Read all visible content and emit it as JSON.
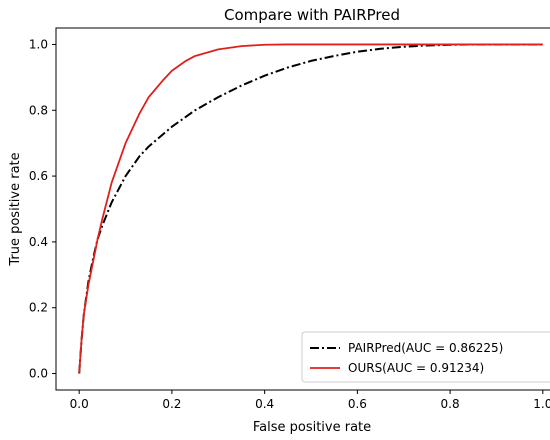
{
  "chart_data": {
    "type": "line",
    "title": "Compare with PAIRPred",
    "xlabel": "False positive rate",
    "ylabel": "True positive rate",
    "xlim": [
      -0.05,
      1.05
    ],
    "ylim": [
      -0.05,
      1.05
    ],
    "x_ticks": [
      "0.0",
      "0.2",
      "0.4",
      "0.6",
      "0.8",
      "1.0"
    ],
    "y_ticks": [
      "0.0",
      "0.2",
      "0.4",
      "0.6",
      "0.8",
      "1.0"
    ],
    "grid": false,
    "legend_position": "lower-right",
    "series": [
      {
        "name": "PAIRPred(AUC = 0.86225)",
        "color": "#000000",
        "style": "dash-dot",
        "x": [
          0.0,
          0.005,
          0.01,
          0.02,
          0.03,
          0.04,
          0.05,
          0.07,
          0.1,
          0.13,
          0.15,
          0.2,
          0.25,
          0.3,
          0.35,
          0.4,
          0.45,
          0.5,
          0.55,
          0.6,
          0.65,
          0.7,
          0.75,
          0.8,
          0.85,
          0.9,
          1.0
        ],
        "y": [
          0.0,
          0.1,
          0.18,
          0.28,
          0.35,
          0.41,
          0.45,
          0.52,
          0.6,
          0.66,
          0.69,
          0.75,
          0.8,
          0.84,
          0.875,
          0.905,
          0.93,
          0.95,
          0.965,
          0.978,
          0.987,
          0.993,
          0.997,
          0.999,
          1.0,
          1.0,
          1.0
        ]
      },
      {
        "name": "OURS(AUC = 0.91234)",
        "color": "#e0201c",
        "style": "solid",
        "x": [
          0.0,
          0.005,
          0.01,
          0.02,
          0.03,
          0.04,
          0.05,
          0.07,
          0.1,
          0.13,
          0.15,
          0.18,
          0.2,
          0.23,
          0.25,
          0.3,
          0.35,
          0.4,
          0.45,
          0.5,
          0.6,
          0.7,
          0.8,
          0.9,
          1.0
        ],
        "y": [
          0.0,
          0.1,
          0.18,
          0.27,
          0.34,
          0.41,
          0.47,
          0.58,
          0.7,
          0.79,
          0.84,
          0.89,
          0.92,
          0.95,
          0.965,
          0.985,
          0.995,
          0.999,
          1.0,
          1.0,
          1.0,
          1.0,
          1.0,
          1.0,
          1.0
        ]
      }
    ]
  }
}
